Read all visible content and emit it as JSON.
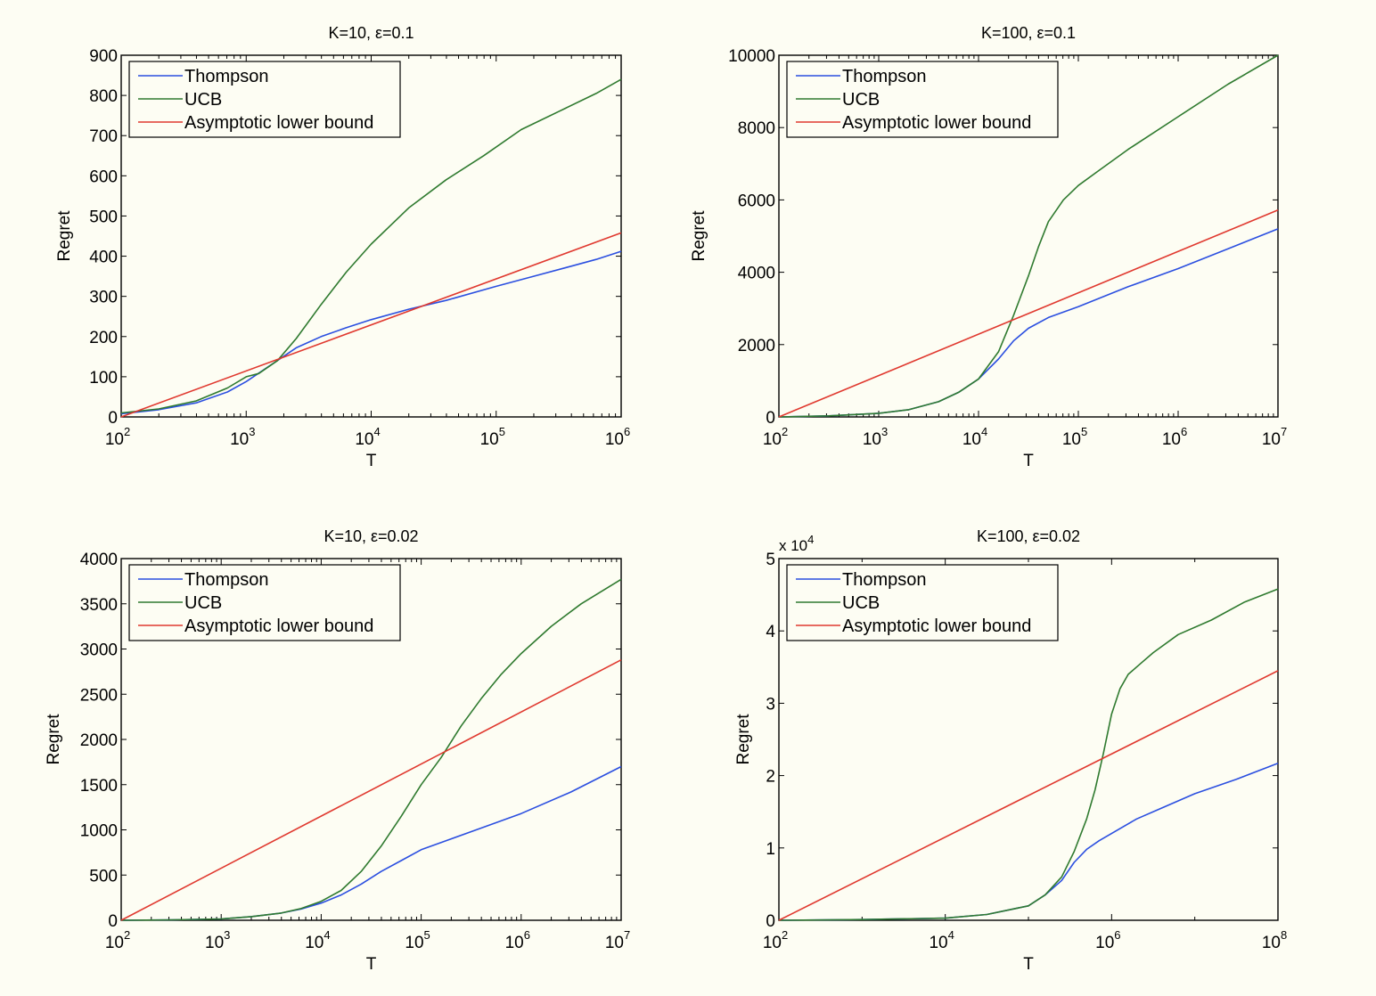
{
  "colors": {
    "background": "#fdfdf3",
    "Thompson": "#2b4fe0",
    "UCB": "#2f7a2f",
    "Asymptotic lower bound": "#e0392f"
  },
  "chart_data": [
    {
      "type": "line",
      "title": "K=10, ε=0.1",
      "xlabel": "T",
      "ylabel": "Regret",
      "xscale": "log",
      "xlim_log10": [
        2,
        6
      ],
      "ylim": [
        0,
        900
      ],
      "xticks": [
        {
          "base": "10",
          "exp": "2"
        },
        {
          "base": "10",
          "exp": "3"
        },
        {
          "base": "10",
          "exp": "4"
        },
        {
          "base": "10",
          "exp": "5"
        },
        {
          "base": "10",
          "exp": "6"
        }
      ],
      "yticks": [
        "0",
        "100",
        "200",
        "300",
        "400",
        "500",
        "600",
        "700",
        "800",
        "900"
      ],
      "y_multiplier": "",
      "legend": [
        "Thompson",
        "UCB",
        "Asymptotic lower bound"
      ],
      "legend_position": "top-left",
      "series": [
        {
          "name": "Thompson",
          "log10_x": [
            2,
            2.3,
            2.6,
            2.85,
            3.0,
            3.2,
            3.4,
            3.6,
            3.8,
            4.0,
            4.3,
            4.6,
            5.0,
            5.3,
            5.6,
            5.8,
            6.0
          ],
          "y": [
            8,
            18,
            35,
            62,
            88,
            130,
            172,
            200,
            222,
            242,
            268,
            290,
            325,
            350,
            375,
            392,
            412
          ]
        },
        {
          "name": "UCB",
          "log10_x": [
            2,
            2.3,
            2.6,
            2.85,
            3.0,
            3.1,
            3.25,
            3.4,
            3.6,
            3.8,
            4.0,
            4.3,
            4.6,
            4.9,
            5.2,
            5.5,
            5.8,
            6.0
          ],
          "y": [
            10,
            20,
            40,
            72,
            100,
            108,
            140,
            195,
            280,
            360,
            430,
            520,
            590,
            650,
            715,
            760,
            805,
            840
          ]
        },
        {
          "name": "Asymptotic lower bound",
          "log10_x": [
            2,
            6
          ],
          "y": [
            0,
            458
          ]
        }
      ]
    },
    {
      "type": "line",
      "title": "K=100, ε=0.1",
      "xlabel": "T",
      "ylabel": "Regret",
      "xscale": "log",
      "xlim_log10": [
        2,
        7
      ],
      "ylim": [
        0,
        10000
      ],
      "xticks": [
        {
          "base": "10",
          "exp": "2"
        },
        {
          "base": "10",
          "exp": "3"
        },
        {
          "base": "10",
          "exp": "4"
        },
        {
          "base": "10",
          "exp": "5"
        },
        {
          "base": "10",
          "exp": "6"
        },
        {
          "base": "10",
          "exp": "7"
        }
      ],
      "yticks": [
        "0",
        "2000",
        "4000",
        "6000",
        "8000",
        "10000"
      ],
      "y_multiplier": "",
      "legend": [
        "Thompson",
        "UCB",
        "Asymptotic lower bound"
      ],
      "legend_position": "top-left",
      "series": [
        {
          "name": "Thompson",
          "log10_x": [
            2,
            2.5,
            3.0,
            3.3,
            3.6,
            3.8,
            4.0,
            4.2,
            4.35,
            4.5,
            4.7,
            5.0,
            5.5,
            6.0,
            6.5,
            7.0
          ],
          "y": [
            0,
            30,
            100,
            200,
            420,
            680,
            1050,
            1600,
            2100,
            2450,
            2750,
            3050,
            3600,
            4100,
            4650,
            5200
          ]
        },
        {
          "name": "UCB",
          "log10_x": [
            2,
            2.5,
            3.0,
            3.3,
            3.6,
            3.8,
            4.0,
            4.2,
            4.35,
            4.5,
            4.6,
            4.7,
            4.85,
            5.0,
            5.2,
            5.5,
            6.0,
            6.5,
            7.0
          ],
          "y": [
            0,
            30,
            100,
            200,
            420,
            680,
            1050,
            1800,
            2800,
            3900,
            4700,
            5400,
            6000,
            6400,
            6800,
            7400,
            8300,
            9200,
            10000
          ]
        },
        {
          "name": "Asymptotic lower bound",
          "log10_x": [
            2,
            7
          ],
          "y": [
            0,
            5720
          ]
        }
      ]
    },
    {
      "type": "line",
      "title": "K=10, ε=0.02",
      "xlabel": "T",
      "ylabel": "Regret",
      "xscale": "log",
      "xlim_log10": [
        2,
        7
      ],
      "ylim": [
        0,
        4000
      ],
      "xticks": [
        {
          "base": "10",
          "exp": "2"
        },
        {
          "base": "10",
          "exp": "3"
        },
        {
          "base": "10",
          "exp": "4"
        },
        {
          "base": "10",
          "exp": "5"
        },
        {
          "base": "10",
          "exp": "6"
        },
        {
          "base": "10",
          "exp": "7"
        }
      ],
      "yticks": [
        "0",
        "500",
        "1000",
        "1500",
        "2000",
        "2500",
        "3000",
        "3500",
        "4000"
      ],
      "y_multiplier": "",
      "legend": [
        "Thompson",
        "UCB",
        "Asymptotic lower bound"
      ],
      "legend_position": "top-left",
      "series": [
        {
          "name": "Thompson",
          "log10_x": [
            2,
            2.5,
            3.0,
            3.3,
            3.6,
            3.8,
            4.0,
            4.2,
            4.4,
            4.6,
            4.8,
            5.0,
            5.3,
            5.6,
            6.0,
            6.5,
            7.0
          ],
          "y": [
            0,
            5,
            15,
            40,
            80,
            125,
            190,
            280,
            400,
            540,
            660,
            780,
            900,
            1020,
            1180,
            1420,
            1700
          ]
        },
        {
          "name": "UCB",
          "log10_x": [
            2,
            2.5,
            3.0,
            3.3,
            3.6,
            3.8,
            4.0,
            4.2,
            4.4,
            4.6,
            4.8,
            5.0,
            5.2,
            5.4,
            5.6,
            5.8,
            6.0,
            6.3,
            6.6,
            7.0
          ],
          "y": [
            0,
            5,
            15,
            40,
            80,
            130,
            210,
            330,
            540,
            820,
            1150,
            1500,
            1800,
            2150,
            2450,
            2720,
            2950,
            3250,
            3500,
            3770
          ]
        },
        {
          "name": "Asymptotic lower bound",
          "log10_x": [
            2,
            7
          ],
          "y": [
            0,
            2880
          ]
        }
      ]
    },
    {
      "type": "line",
      "title": "K=100, ε=0.02",
      "xlabel": "T",
      "ylabel": "Regret",
      "xscale": "log",
      "xlim_log10": [
        2,
        8
      ],
      "ylim": [
        0,
        5
      ],
      "xticks": [
        {
          "base": "10",
          "exp": "2"
        },
        {
          "base": "10",
          "exp": "4"
        },
        {
          "base": "10",
          "exp": "6"
        },
        {
          "base": "10",
          "exp": "8"
        }
      ],
      "yticks": [
        "0",
        "1",
        "2",
        "3",
        "4",
        "5"
      ],
      "y_multiplier": {
        "prefix": "x 10",
        "exp": "4"
      },
      "legend": [
        "Thompson",
        "UCB",
        "Asymptotic lower bound"
      ],
      "legend_position": "top-left",
      "series": [
        {
          "name": "Thompson",
          "log10_x": [
            2,
            3,
            4,
            4.5,
            5.0,
            5.2,
            5.4,
            5.55,
            5.7,
            5.85,
            6.0,
            6.3,
            6.6,
            7.0,
            7.5,
            8.0
          ],
          "y": [
            0,
            0.01,
            0.03,
            0.08,
            0.2,
            0.35,
            0.55,
            0.8,
            0.98,
            1.1,
            1.2,
            1.4,
            1.55,
            1.75,
            1.95,
            2.17
          ]
        },
        {
          "name": "UCB",
          "log10_x": [
            2,
            3,
            4,
            4.5,
            5.0,
            5.2,
            5.4,
            5.55,
            5.7,
            5.8,
            5.9,
            6.0,
            6.1,
            6.2,
            6.35,
            6.5,
            6.8,
            7.2,
            7.6,
            8.0
          ],
          "y": [
            0,
            0.01,
            0.03,
            0.08,
            0.2,
            0.35,
            0.6,
            0.95,
            1.4,
            1.8,
            2.3,
            2.85,
            3.2,
            3.4,
            3.55,
            3.7,
            3.95,
            4.15,
            4.4,
            4.58
          ]
        },
        {
          "name": "Asymptotic lower bound",
          "log10_x": [
            2,
            8
          ],
          "y": [
            0,
            3.45
          ]
        }
      ]
    }
  ]
}
